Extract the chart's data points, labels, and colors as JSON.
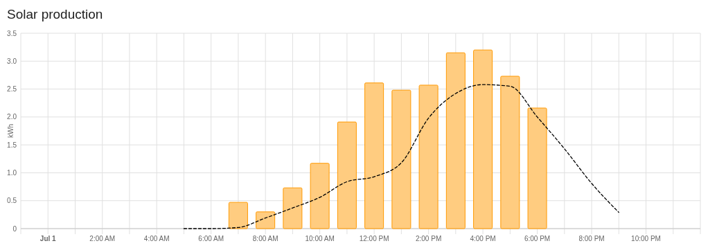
{
  "chart_data": {
    "type": "bar",
    "title": "Solar production",
    "ylabel": "kWh",
    "xlim": [
      -1,
      24
    ],
    "xticks": [
      {
        "value": 0,
        "label": "Jul 1"
      },
      {
        "value": 1,
        "label": null
      },
      {
        "value": 2,
        "label": "2:00 AM"
      },
      {
        "value": 3,
        "label": null
      },
      {
        "value": 4,
        "label": "4:00 AM"
      },
      {
        "value": 5,
        "label": null
      },
      {
        "value": 6,
        "label": "6:00 AM"
      },
      {
        "value": 7,
        "label": null
      },
      {
        "value": 8,
        "label": "8:00 AM"
      },
      {
        "value": 9,
        "label": null
      },
      {
        "value": 10,
        "label": "10:00 AM"
      },
      {
        "value": 11,
        "label": null
      },
      {
        "value": 12,
        "label": "12:00 PM"
      },
      {
        "value": 13,
        "label": null
      },
      {
        "value": 14,
        "label": "2:00 PM"
      },
      {
        "value": 15,
        "label": null
      },
      {
        "value": 16,
        "label": "4:00 PM"
      },
      {
        "value": 17,
        "label": null
      },
      {
        "value": 18,
        "label": "6:00 PM"
      },
      {
        "value": 19,
        "label": null
      },
      {
        "value": 20,
        "label": "8:00 PM"
      },
      {
        "value": 21,
        "label": null
      },
      {
        "value": 22,
        "label": "10:00 PM"
      },
      {
        "value": 23,
        "label": null
      }
    ],
    "ylim": [
      0,
      3.5
    ],
    "yticks": [
      0,
      0.5,
      {
        "value": 1,
        "label": "1.0"
      },
      1.5,
      {
        "value": 2,
        "label": "2.0"
      },
      2.5,
      {
        "value": 3,
        "label": "3.0"
      },
      3.5
    ],
    "grid": true,
    "series": [
      {
        "color": "#ffcc80",
        "x": [
          7,
          8,
          9,
          10,
          11,
          12,
          13,
          14,
          15,
          16,
          17,
          18
        ],
        "values": [
          0.47,
          0.3,
          0.73,
          1.17,
          1.91,
          2.61,
          2.48,
          2.57,
          3.15,
          3.2,
          2.73,
          2.16
        ]
      },
      {
        "type": "line",
        "color": "#000000",
        "line_style": "dashed",
        "x": [
          5,
          6,
          7,
          8,
          9,
          10,
          11,
          12,
          13,
          14,
          15,
          16,
          17,
          18,
          19,
          20,
          21
        ],
        "values": [
          0,
          0,
          0.02,
          0.19,
          0.37,
          0.56,
          0.84,
          0.93,
          1.18,
          1.98,
          2.42,
          2.58,
          2.55,
          2,
          1.43,
          0.81,
          0.29
        ]
      }
    ]
  }
}
